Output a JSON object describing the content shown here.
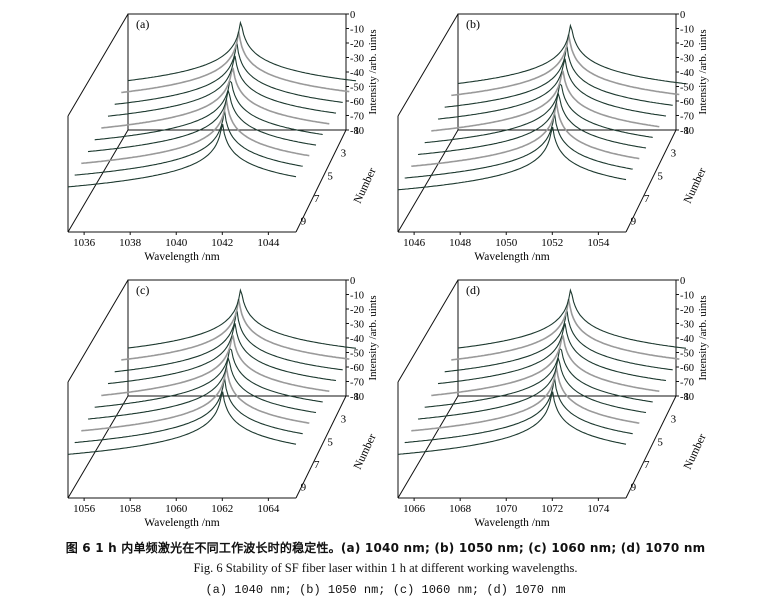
{
  "caption": {
    "cn": "图 6  1 h 内单频激光在不同工作波长时的稳定性。(a) 1040 nm; (b) 1050 nm; (c) 1060 nm; (d) 1070 nm",
    "en": "Fig. 6   Stability of SF fiber laser within 1 h at different working wavelengths.",
    "sub": "(a) 1040 nm; (b) 1050 nm; (c) 1060 nm; (d) 1070 nm"
  },
  "chart_data": [
    {
      "type": "line",
      "panel_label": "(a)",
      "xlabel": "Wavelength /nm",
      "ylabel": "Number",
      "zlabel": "Intensity /arb. uints",
      "x_ticks": [
        1036,
        1038,
        1040,
        1042,
        1044
      ],
      "xlim": [
        1035.3,
        1045.2
      ],
      "z_ticks": [
        0,
        -10,
        -20,
        -30,
        -40,
        -50,
        -60,
        -70,
        -80
      ],
      "zlim": [
        -80,
        0
      ],
      "y_ticks": [
        1,
        3,
        5,
        7,
        9
      ],
      "series_count": 10,
      "series_peak_wavelength": [
        1042.0,
        1041.8,
        1041.6,
        1041.4,
        1041.2,
        1041.0,
        1040.8,
        1040.6,
        1040.4,
        1040.2
      ],
      "peak_intensity": -3,
      "noise_floor": -62
    },
    {
      "type": "line",
      "panel_label": "(b)",
      "xlabel": "Wavelength /nm",
      "ylabel": "Number",
      "zlabel": "Intensity /arb. uints",
      "x_ticks": [
        1046,
        1048,
        1050,
        1052,
        1054
      ],
      "xlim": [
        1045.3,
        1055.2
      ],
      "z_ticks": [
        0,
        -10,
        -20,
        -30,
        -40,
        -50,
        -60,
        -70,
        -80
      ],
      "zlim": [
        -80,
        0
      ],
      "y_ticks": [
        1,
        3,
        5,
        7,
        9
      ],
      "series_count": 10,
      "series_peak_wavelength": [
        1052.0,
        1051.8,
        1051.6,
        1051.4,
        1051.2,
        1051.0,
        1050.8,
        1050.6,
        1050.4,
        1050.2
      ],
      "peak_intensity": -5,
      "noise_floor": -64
    },
    {
      "type": "line",
      "panel_label": "(c)",
      "xlabel": "Wavelength /nm",
      "ylabel": "Number",
      "zlabel": "Intensity /arb. uints",
      "x_ticks": [
        1056,
        1058,
        1060,
        1062,
        1064
      ],
      "xlim": [
        1055.3,
        1065.2
      ],
      "z_ticks": [
        0,
        -10,
        -20,
        -30,
        -40,
        -50,
        -60,
        -70,
        -80
      ],
      "zlim": [
        -80,
        0
      ],
      "y_ticks": [
        1,
        3,
        5,
        7,
        9
      ],
      "series_count": 10,
      "series_peak_wavelength": [
        1062.0,
        1061.8,
        1061.6,
        1061.4,
        1061.2,
        1061.0,
        1060.8,
        1060.6,
        1060.4,
        1060.2
      ],
      "peak_intensity": -4,
      "noise_floor": -72
    },
    {
      "type": "line",
      "panel_label": "(d)",
      "xlabel": "Wavelength /nm",
      "ylabel": "Number",
      "zlabel": "Intensity /arb. uints",
      "x_ticks": [
        1066,
        1068,
        1070,
        1072,
        1074
      ],
      "xlim": [
        1065.3,
        1075.2
      ],
      "z_ticks": [
        0,
        -10,
        -20,
        -30,
        -40,
        -50,
        -60,
        -70,
        -80
      ],
      "zlim": [
        -80,
        0
      ],
      "y_ticks": [
        1,
        3,
        5,
        7,
        9
      ],
      "series_count": 10,
      "series_peak_wavelength": [
        1072.0,
        1071.8,
        1071.6,
        1071.4,
        1071.2,
        1071.0,
        1070.8,
        1070.6,
        1070.4,
        1070.2
      ],
      "peak_intensity": -4,
      "noise_floor": -72
    }
  ],
  "colors": {
    "trace_dark": "#1e3a30",
    "trace_gray": "#9a9a9a",
    "axis": "#111111"
  }
}
